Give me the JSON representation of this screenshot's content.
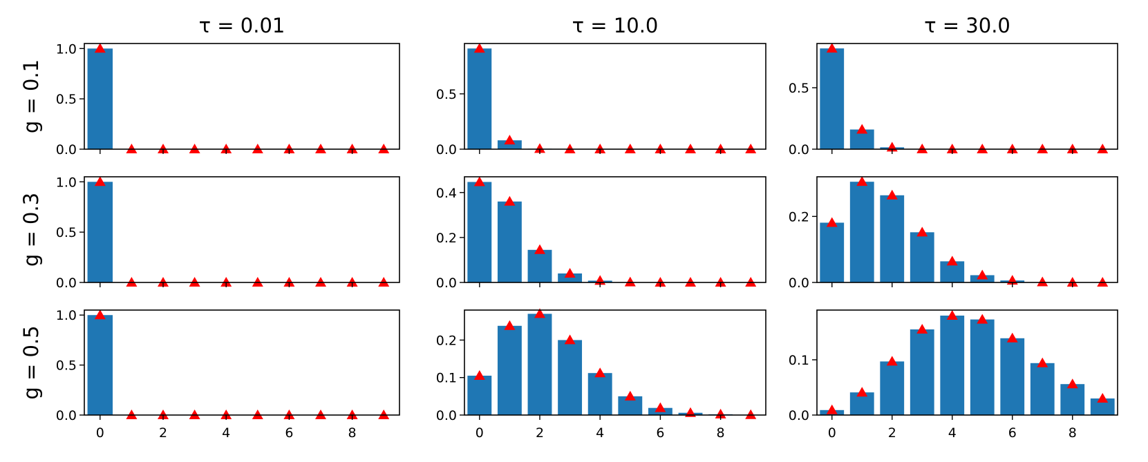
{
  "chart_data": {
    "type": "bar",
    "layout": "grid 3 rows x 3 columns",
    "column_titles": [
      "τ = 0.01",
      "τ = 10.0",
      "τ = 30.0"
    ],
    "row_labels": [
      "g = 0.1",
      "g = 0.3",
      "g = 0.5"
    ],
    "x": [
      0,
      1,
      2,
      3,
      4,
      5,
      6,
      7,
      8,
      9
    ],
    "x_tick_labels": [
      "0",
      "2",
      "4",
      "6",
      "8"
    ],
    "x_tick_values": [
      0,
      2,
      4,
      6,
      8
    ],
    "xlim": [
      -0.5,
      9.5
    ],
    "bar_color": "#1f77b4",
    "marker_color": "#ff0000",
    "marker_shape": "triangle",
    "grid": false,
    "panels": [
      {
        "row": 0,
        "col": 0,
        "ylim": [
          0,
          1.05
        ],
        "y_ticks": [
          0,
          0.5,
          1.0
        ],
        "y_tick_labels": [
          "0.0",
          "0.5",
          "1.0"
        ],
        "bars": [
          1.0,
          0,
          0,
          0,
          0,
          0,
          0,
          0,
          0,
          0
        ],
        "markers": [
          1.0,
          0,
          0,
          0,
          0,
          0,
          0,
          0,
          0,
          0
        ]
      },
      {
        "row": 0,
        "col": 1,
        "ylim": [
          0,
          0.955
        ],
        "y_ticks": [
          0,
          0.5
        ],
        "y_tick_labels": [
          "0.0",
          "0.5"
        ],
        "bars": [
          0.91,
          0.08,
          0.004,
          0,
          0,
          0,
          0,
          0,
          0,
          0
        ],
        "markers": [
          0.91,
          0.08,
          0.004,
          0,
          0,
          0,
          0,
          0,
          0,
          0
        ]
      },
      {
        "row": 0,
        "col": 2,
        "ylim": [
          0,
          0.86
        ],
        "y_ticks": [
          0,
          0.5
        ],
        "y_tick_labels": [
          "0.0",
          "0.5"
        ],
        "bars": [
          0.82,
          0.16,
          0.015,
          0.001,
          0,
          0,
          0,
          0,
          0,
          0
        ],
        "markers": [
          0.82,
          0.16,
          0.015,
          0.001,
          0,
          0,
          0,
          0,
          0,
          0
        ]
      },
      {
        "row": 1,
        "col": 0,
        "ylim": [
          0,
          1.05
        ],
        "y_ticks": [
          0,
          0.5,
          1.0
        ],
        "y_tick_labels": [
          "0.0",
          "0.5",
          "1.0"
        ],
        "bars": [
          1.0,
          0,
          0,
          0,
          0,
          0,
          0,
          0,
          0,
          0
        ],
        "markers": [
          1.0,
          0,
          0,
          0,
          0,
          0,
          0,
          0,
          0,
          0
        ]
      },
      {
        "row": 1,
        "col": 1,
        "ylim": [
          0,
          0.47
        ],
        "y_ticks": [
          0,
          0.2,
          0.4
        ],
        "y_tick_labels": [
          "0.0",
          "0.2",
          "0.4"
        ],
        "bars": [
          0.447,
          0.36,
          0.145,
          0.04,
          0.008,
          0.001,
          0,
          0,
          0,
          0
        ],
        "markers": [
          0.447,
          0.36,
          0.145,
          0.04,
          0.008,
          0.001,
          0,
          0,
          0,
          0
        ]
      },
      {
        "row": 1,
        "col": 2,
        "ylim": [
          0,
          0.32
        ],
        "y_ticks": [
          0,
          0.2
        ],
        "y_tick_labels": [
          "0.0",
          "0.2"
        ],
        "bars": [
          0.181,
          0.305,
          0.264,
          0.152,
          0.064,
          0.022,
          0.006,
          0.001,
          0,
          0
        ],
        "markers": [
          0.181,
          0.305,
          0.264,
          0.152,
          0.064,
          0.022,
          0.006,
          0.001,
          0,
          0
        ]
      },
      {
        "row": 2,
        "col": 0,
        "ylim": [
          0,
          1.05
        ],
        "y_ticks": [
          0,
          0.5,
          1.0
        ],
        "y_tick_labels": [
          "0.0",
          "0.5",
          "1.0"
        ],
        "bars": [
          1.0,
          0,
          0,
          0,
          0,
          0,
          0,
          0,
          0,
          0
        ],
        "markers": [
          1.0,
          0,
          0,
          0,
          0,
          0,
          0,
          0,
          0,
          0
        ]
      },
      {
        "row": 2,
        "col": 1,
        "ylim": [
          0,
          0.28
        ],
        "y_ticks": [
          0,
          0.1,
          0.2
        ],
        "y_tick_labels": [
          "0.0",
          "0.1",
          "0.2"
        ],
        "bars": [
          0.105,
          0.238,
          0.27,
          0.2,
          0.112,
          0.05,
          0.019,
          0.006,
          0.002,
          0.0005
        ],
        "markers": [
          0.105,
          0.238,
          0.27,
          0.2,
          0.112,
          0.05,
          0.019,
          0.006,
          0.002,
          0.0005
        ]
      },
      {
        "row": 2,
        "col": 2,
        "ylim": [
          0,
          0.19
        ],
        "y_ticks": [
          0,
          0.1
        ],
        "y_tick_labels": [
          "0.0",
          "0.1"
        ],
        "bars": [
          0.009,
          0.041,
          0.097,
          0.155,
          0.18,
          0.173,
          0.139,
          0.094,
          0.056,
          0.03
        ],
        "markers": [
          0.009,
          0.041,
          0.097,
          0.155,
          0.18,
          0.173,
          0.139,
          0.094,
          0.056,
          0.03
        ]
      }
    ]
  }
}
